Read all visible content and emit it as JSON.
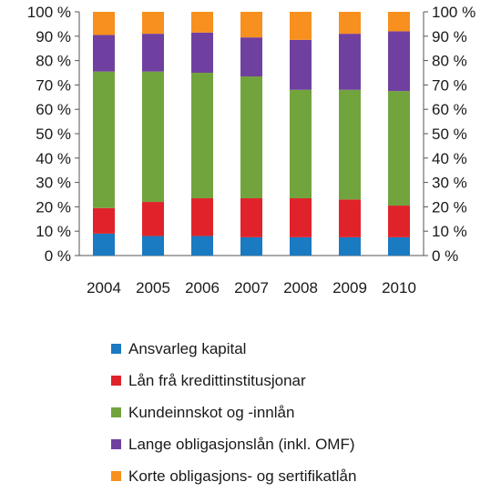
{
  "chart_data": {
    "type": "bar",
    "stacked": true,
    "categories": [
      "2004",
      "2005",
      "2006",
      "2007",
      "2008",
      "2009",
      "2010"
    ],
    "ylim": [
      0,
      100
    ],
    "yticks": [
      "0 %",
      "10 %",
      "20 %",
      "30 %",
      "40 %",
      "50 %",
      "60 %",
      "70 %",
      "80 %",
      "90 %",
      "100 %"
    ],
    "y_axis_sides": "left-and-right",
    "grid": false,
    "legend_position": "bottom",
    "series": [
      {
        "name": "Ansvarleg kapital",
        "color": "#1a7ac2",
        "values": [
          9,
          8,
          8,
          7.5,
          7.5,
          7.5,
          7.5
        ]
      },
      {
        "name": "Lån frå kredittinstitusjonar",
        "color": "#e0232b",
        "values": [
          10.5,
          14,
          15.5,
          16,
          16,
          15.5,
          13
        ]
      },
      {
        "name": "Kundeinnskot og -innlån",
        "color": "#72a43e",
        "values": [
          56,
          53.5,
          51.5,
          50,
          44.5,
          45,
          47
        ]
      },
      {
        "name": "Lange obligasjonslån (inkl. OMF)",
        "color": "#7040a0",
        "values": [
          15,
          15.5,
          16.5,
          16,
          20.5,
          23,
          24.5
        ]
      },
      {
        "name": "Korte obligasjons- og sertifikatlån",
        "color": "#f7901e",
        "values": [
          9.5,
          9,
          8.5,
          10.5,
          11.5,
          9,
          8
        ]
      }
    ]
  }
}
